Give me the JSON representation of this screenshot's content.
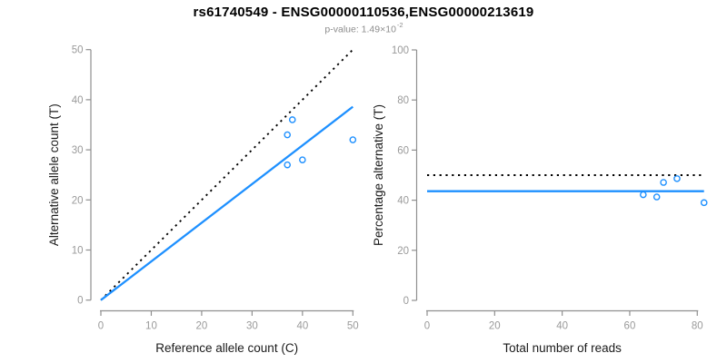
{
  "header": {
    "title": "rs61740549 - ENSG00000110536,ENSG00000213619",
    "pvalue_prefix": "p-value: 1.49×10",
    "pvalue_exponent": "-2"
  },
  "colors": {
    "accent_blue": "#1e90ff",
    "axis_line": "#8f8f8f",
    "tick_label": "#9a9a9a",
    "axis_title": "#1a1a1a",
    "title_text": "#000000",
    "subtitle_text": "#8c8c8c",
    "dotted_line": "#000000",
    "background": "#ffffff"
  },
  "chart_data": [
    {
      "type": "scatter",
      "panel": "allele-counts",
      "xlabel": "Reference allele count (C)",
      "ylabel": "Alternative allele count (T)",
      "xlim": [
        0,
        50
      ],
      "ylim": [
        0,
        50
      ],
      "xticks": [
        0,
        10,
        20,
        30,
        40,
        50
      ],
      "yticks": [
        0,
        10,
        20,
        30,
        40,
        50
      ],
      "grid": false,
      "legend_position": "none",
      "points": [
        [
          37,
          27
        ],
        [
          37,
          33
        ],
        [
          38,
          36
        ],
        [
          40,
          28
        ],
        [
          50,
          32
        ]
      ],
      "lines": [
        {
          "name": "identity-line",
          "style": "dotted",
          "color_key": "dotted_line",
          "x": [
            0,
            50
          ],
          "y": [
            0,
            50
          ]
        },
        {
          "name": "fit-line",
          "style": "solid",
          "color_key": "accent_blue",
          "x": [
            0,
            50
          ],
          "y": [
            0,
            38.6
          ]
        }
      ]
    },
    {
      "type": "scatter",
      "panel": "percentage-vs-reads",
      "xlabel": "Total number of reads",
      "ylabel": "Percentage alternative (T)",
      "xlim": [
        0,
        82
      ],
      "ylim": [
        0,
        100
      ],
      "xticks": [
        0,
        20,
        40,
        60,
        80
      ],
      "yticks": [
        0,
        20,
        40,
        60,
        80,
        100
      ],
      "grid": false,
      "legend_position": "none",
      "points": [
        [
          64,
          42.2
        ],
        [
          68,
          41.3
        ],
        [
          70,
          47.1
        ],
        [
          74,
          48.6
        ],
        [
          82,
          39
        ]
      ],
      "lines": [
        {
          "name": "expected-50pct-line",
          "style": "dotted",
          "color_key": "dotted_line",
          "x": [
            0,
            82
          ],
          "y": [
            50,
            50
          ]
        },
        {
          "name": "observed-mean-line",
          "style": "solid",
          "color_key": "accent_blue",
          "x": [
            0,
            82
          ],
          "y": [
            43.6,
            43.6
          ]
        }
      ]
    }
  ]
}
